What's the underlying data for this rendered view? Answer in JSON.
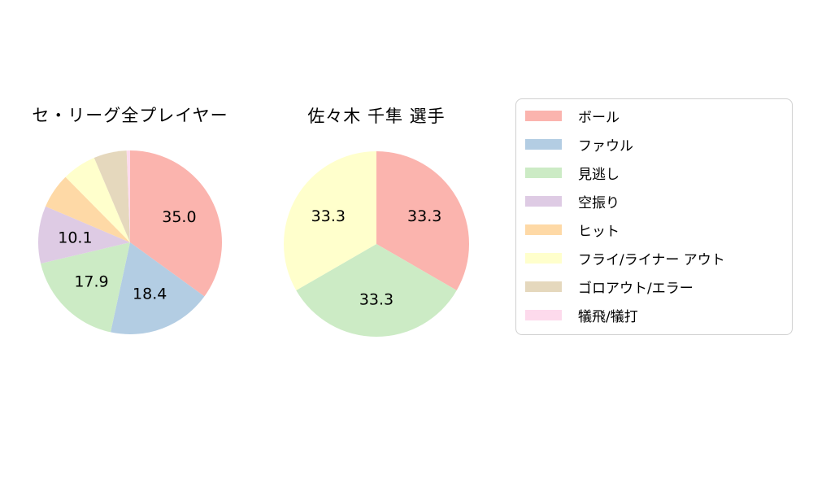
{
  "figure": {
    "background": "#ffffff",
    "text_color": "#000000"
  },
  "chart_data": [
    {
      "type": "pie",
      "title": "セ・リーグ全プレイヤー",
      "categories": [
        "ボール",
        "ファウル",
        "見逃し",
        "空振り",
        "ヒット",
        "フライ/ライナー アウト",
        "ゴロアウト/エラー",
        "犠飛/犠打"
      ],
      "values": [
        35.0,
        18.4,
        17.9,
        10.1,
        6.2,
        6.0,
        5.8,
        0.6
      ],
      "slice_labels": [
        "35.0",
        "18.4",
        "17.9",
        "10.1",
        "",
        "",
        "",
        ""
      ],
      "colors": [
        "#fbb4ae",
        "#b3cde3",
        "#ccebc5",
        "#decbe4",
        "#fed9a6",
        "#ffffcc",
        "#e5d8bd",
        "#fddaec"
      ],
      "start_angle_deg": 0,
      "direction": "clockwise",
      "label_radius_frac": 0.6,
      "note": "labels shown only for slices >= 10%; small slice values estimated from arc angles"
    },
    {
      "type": "pie",
      "title": "佐々木 千隼 選手",
      "categories": [
        "ボール",
        "見逃し",
        "フライ/ライナー アウト"
      ],
      "values": [
        33.3,
        33.3,
        33.3
      ],
      "slice_labels": [
        "33.3",
        "33.3",
        "33.3"
      ],
      "colors": [
        "#fbb4ae",
        "#ccebc5",
        "#ffffcc"
      ],
      "start_angle_deg": 0,
      "direction": "clockwise",
      "label_radius_frac": 0.6
    }
  ],
  "legend": {
    "position": "right",
    "border_color": "#d0d0d0",
    "items": [
      {
        "label": "ボール",
        "color": "#fbb4ae"
      },
      {
        "label": "ファウル",
        "color": "#b3cde3"
      },
      {
        "label": "見逃し",
        "color": "#ccebc5"
      },
      {
        "label": "空振り",
        "color": "#decbe4"
      },
      {
        "label": "ヒット",
        "color": "#fed9a6"
      },
      {
        "label": "フライ/ライナー アウト",
        "color": "#ffffcc"
      },
      {
        "label": "ゴロアウト/エラー",
        "color": "#e5d8bd"
      },
      {
        "label": "犠飛/犠打",
        "color": "#fddaec"
      }
    ]
  }
}
